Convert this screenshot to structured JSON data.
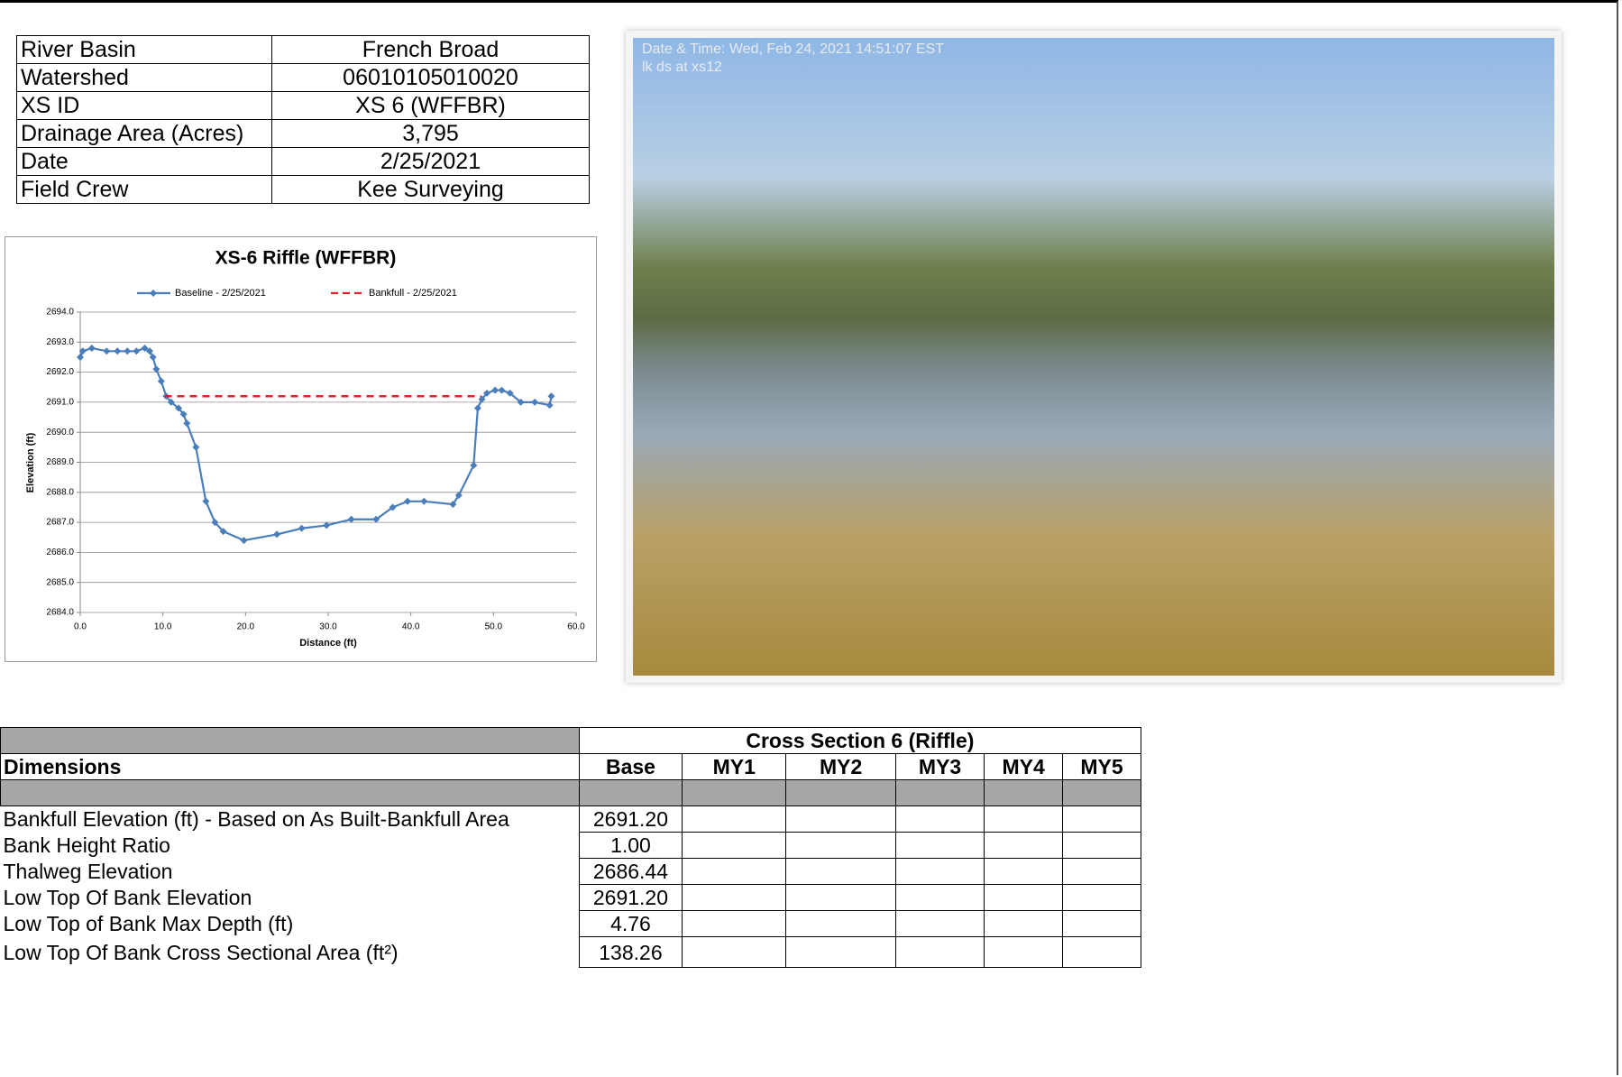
{
  "info_table": {
    "rows": [
      [
        "River Basin",
        "French Broad"
      ],
      [
        "Watershed",
        "06010105010020"
      ],
      [
        "XS ID",
        "XS 6 (WFFBR)"
      ],
      [
        "Drainage Area (Acres)",
        "3,795"
      ],
      [
        "Date",
        "2/25/2021"
      ],
      [
        "Field Crew",
        "Kee Surveying"
      ]
    ]
  },
  "chart_data": {
    "type": "line",
    "title": "XS-6 Riffle (WFFBR)",
    "xlabel": "Distance (ft)",
    "ylabel": "Elevation (ft)",
    "xlim": [
      0,
      60
    ],
    "ylim": [
      2684,
      2694
    ],
    "xticks": [
      {
        "value": 0,
        "label": "0.0"
      },
      {
        "value": 10,
        "label": "10.0"
      },
      {
        "value": 20,
        "label": "20.0"
      },
      {
        "value": 30,
        "label": "30.0"
      },
      {
        "value": 40,
        "label": "40.0"
      },
      {
        "value": 50,
        "label": "50.0"
      },
      {
        "value": 60,
        "label": "60.0"
      }
    ],
    "yticks": [
      {
        "value": 2684,
        "label": "2684.0"
      },
      {
        "value": 2685,
        "label": "2685.0"
      },
      {
        "value": 2686,
        "label": "2686.0"
      },
      {
        "value": 2687,
        "label": "2687.0"
      },
      {
        "value": 2688,
        "label": "2688.0"
      },
      {
        "value": 2689,
        "label": "2689.0"
      },
      {
        "value": 2690,
        "label": "2690.0"
      },
      {
        "value": 2691,
        "label": "2691.0"
      },
      {
        "value": 2692,
        "label": "2692.0"
      },
      {
        "value": 2693,
        "label": "2693.0"
      },
      {
        "value": 2694,
        "label": "2694.0"
      }
    ],
    "grid": true,
    "legend": "top",
    "series": [
      {
        "name": "Baseline - 2/25/2021",
        "color": "#4a7ebb",
        "style": "solid",
        "markers": true,
        "x": [
          0.0,
          0.3,
          1.4,
          3.2,
          4.5,
          5.7,
          6.8,
          7.8,
          8.4,
          8.8,
          9.2,
          9.8,
          10.4,
          11.0,
          11.9,
          12.5,
          12.9,
          14.0,
          15.2,
          16.3,
          17.3,
          19.8,
          23.8,
          26.8,
          29.8,
          32.8,
          35.8,
          37.8,
          39.6,
          41.6,
          45.1,
          45.8,
          47.6,
          48.1,
          48.6,
          49.2,
          50.2,
          51.0,
          52.0,
          53.3,
          55.0,
          56.8,
          57.0
        ],
        "values": [
          2692.5,
          2692.7,
          2692.8,
          2692.7,
          2692.7,
          2692.7,
          2692.7,
          2692.8,
          2692.7,
          2692.5,
          2692.1,
          2691.7,
          2691.2,
          2691.0,
          2690.8,
          2690.6,
          2690.3,
          2689.5,
          2687.7,
          2687.0,
          2686.7,
          2686.4,
          2686.6,
          2686.8,
          2686.9,
          2687.1,
          2687.1,
          2687.5,
          2687.7,
          2687.7,
          2687.6,
          2687.9,
          2688.9,
          2690.8,
          2691.1,
          2691.3,
          2691.4,
          2691.4,
          2691.3,
          2691.0,
          2691.0,
          2690.9,
          2691.2
        ]
      },
      {
        "name": "Bankfull - 2/25/2021",
        "color": "#e0202a",
        "style": "dashed",
        "markers": false,
        "x": [
          10.2,
          48.5
        ],
        "values": [
          2691.2,
          2691.2
        ]
      }
    ]
  },
  "photo": {
    "caption_lines": [
      "Date & Time: Wed, Feb 24, 2021 14:51:07 EST",
      "lk ds at xs12"
    ]
  },
  "dimensions_table": {
    "group_header": "Cross Section 6 (Riffle)",
    "headers": [
      "Dimensions",
      "Base",
      "MY1",
      "MY2",
      "MY3",
      "MY4",
      "MY5"
    ],
    "rows": [
      [
        "Bankfull Elevation (ft) - Based on As Built-Bankfull Area",
        "2691.20"
      ],
      [
        "Bank Height Ratio",
        "1.00"
      ],
      [
        "Thalweg Elevation",
        "2686.44"
      ],
      [
        "Low Top Of Bank Elevation",
        "2691.20"
      ],
      [
        "Low Top of Bank Max Depth (ft)",
        "4.76"
      ],
      [
        "Low Top Of Bank Cross Sectional Area (ft²)",
        "138.26"
      ]
    ]
  }
}
